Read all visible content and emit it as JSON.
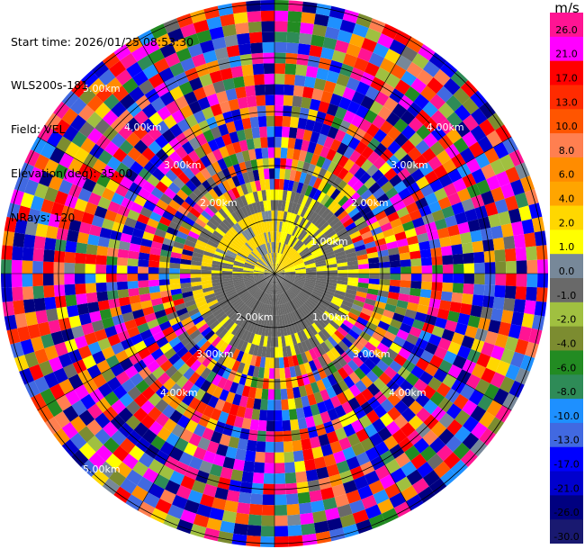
{
  "info": {
    "start_time": "Start time: 2026/01/25 08:53:30",
    "station": "WLS200s-181",
    "field": "Field: VEL",
    "elevation": "Elevation(deg): 35.00",
    "nrays": "NRays: 120"
  },
  "colorbar": {
    "unit": "m/s",
    "ticks": [
      "26.0",
      "21.0",
      "17.0",
      "13.0",
      "10.0",
      "8.0",
      "6.0",
      "4.0",
      "2.0",
      "1.0",
      "0.0",
      "-1.0",
      "-2.0",
      "-4.0",
      "-6.0",
      "-8.0",
      "-10.0",
      "-13.0",
      "-17.0",
      "-21.0",
      "-26.0",
      "-30.0"
    ],
    "colors": [
      "#ff1493",
      "#ff00ff",
      "#ff0000",
      "#ff2b00",
      "#ff5500",
      "#ff7f50",
      "#ff8c00",
      "#ffa500",
      "#ffd700",
      "#ffff00",
      "#778899",
      "#696969",
      "#a0c040",
      "#7c8c30",
      "#228b22",
      "#2e8b57",
      "#1e90ff",
      "#4169e1",
      "#0000ff",
      "#0000cd",
      "#000080",
      "#191970"
    ]
  },
  "chart_data": {
    "type": "heatmap",
    "title": "",
    "field": "VEL",
    "units": "m/s",
    "elevation_deg": 35.0,
    "n_rays": 120,
    "projection": "polar (PPI)",
    "range_ring_labels": [
      {
        "text": "1.00km",
        "ring_km": 1
      },
      {
        "text": "1.00km",
        "ring_km": 1
      },
      {
        "text": "2.00km",
        "ring_km": 2
      },
      {
        "text": "2.00km",
        "ring_km": 2
      },
      {
        "text": "2.00km",
        "ring_km": 2
      },
      {
        "text": "3.00km",
        "ring_km": 3
      },
      {
        "text": "3.00km",
        "ring_km": 3
      },
      {
        "text": "3.00km",
        "ring_km": 3
      },
      {
        "text": "3.00km",
        "ring_km": 3
      },
      {
        "text": "4.00km",
        "ring_km": 4
      },
      {
        "text": "4.00km",
        "ring_km": 4
      },
      {
        "text": "4.00km",
        "ring_km": 4
      },
      {
        "text": "4.00km",
        "ring_km": 4
      },
      {
        "text": "5.00km",
        "ring_km": 5
      },
      {
        "text": "5.00km",
        "ring_km": 5
      }
    ],
    "color_scale_min": -30.0,
    "color_scale_max": 26.0,
    "near_field": "mostly slight negative velocity (-1 to -2 m/s) with patches of +1 to +2 m/s",
    "far_field": "noise across full color scale"
  }
}
